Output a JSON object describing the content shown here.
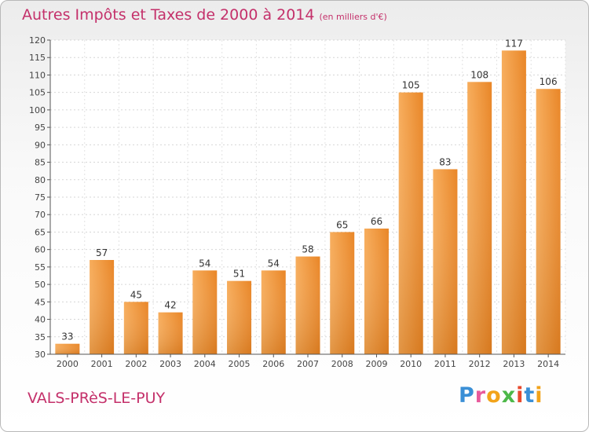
{
  "chart_data": {
    "type": "bar",
    "title": "Autres Impôts et Taxes de 2000 à 2014",
    "subtitle": "(en milliers d'€)",
    "categories": [
      "2000",
      "2001",
      "2002",
      "2003",
      "2004",
      "2005",
      "2006",
      "2007",
      "2008",
      "2009",
      "2010",
      "2011",
      "2012",
      "2013",
      "2014"
    ],
    "values": [
      33,
      57,
      45,
      42,
      54,
      51,
      54,
      58,
      65,
      66,
      105,
      83,
      108,
      117,
      106
    ],
    "ylim": [
      30,
      120
    ],
    "yticks": [
      30,
      35,
      40,
      45,
      50,
      55,
      60,
      65,
      70,
      75,
      80,
      85,
      90,
      95,
      100,
      105,
      110,
      115,
      120
    ],
    "xlabel": "",
    "ylabel": "",
    "grid": true,
    "bar_color": "#f29c3e",
    "label_color": "#333333"
  },
  "footer": {
    "location": "VALS-PRèS-LE-PUY",
    "brand": "Proxiti"
  },
  "colors": {
    "title": "#c4306a",
    "accent": "#f29c3e"
  }
}
